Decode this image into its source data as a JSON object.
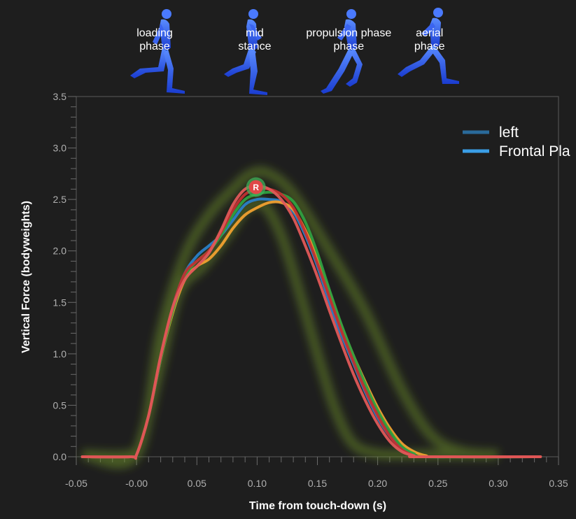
{
  "chart_data": {
    "type": "line",
    "title": "",
    "xlabel": "Time from touch-down (s)",
    "ylabel": "Vertical Force (bodyweights)",
    "xlim": [
      -0.05,
      0.35
    ],
    "ylim": [
      0,
      3.5
    ],
    "x_ticks": [
      "-0.05",
      "-0.00",
      "0.05",
      "0.10",
      "0.15",
      "0.20",
      "0.25",
      "0.30",
      "0.35"
    ],
    "y_ticks": [
      "0.0",
      "0.5",
      "1.0",
      "1.5",
      "2.0",
      "2.5",
      "3.0",
      "3.5"
    ],
    "grid": false,
    "legend_position": "top-right",
    "legend": [
      {
        "name": "left",
        "color": "#2a6a9a"
      },
      {
        "name": "Frontal Pla",
        "color": "#3a9ee6"
      }
    ],
    "phases": [
      {
        "lines": [
          "loading",
          "phase"
        ],
        "x": 0.015
      },
      {
        "lines": [
          "mid",
          "stance"
        ],
        "x": 0.098
      },
      {
        "lines": [
          "propulsion phase",
          "phase"
        ],
        "x": 0.176
      },
      {
        "lines": [
          "aerial",
          "phase"
        ],
        "x": 0.243
      }
    ],
    "marker": {
      "label": "R",
      "x": 0.099,
      "y": 2.62,
      "color": "#e04848"
    },
    "envelope": {
      "color": "#6a8a2a",
      "upper": [
        [
          -0.045,
          0.02
        ],
        [
          0.0,
          0.02
        ],
        [
          0.02,
          1.2
        ],
        [
          0.04,
          1.95
        ],
        [
          0.06,
          2.35
        ],
        [
          0.08,
          2.6
        ],
        [
          0.095,
          2.75
        ],
        [
          0.11,
          2.75
        ],
        [
          0.13,
          2.55
        ],
        [
          0.16,
          2.0
        ],
        [
          0.19,
          1.4
        ],
        [
          0.22,
          0.65
        ],
        [
          0.245,
          0.2
        ],
        [
          0.27,
          0.05
        ],
        [
          0.3,
          0.02
        ]
      ],
      "lower": [
        [
          -0.045,
          0.02
        ],
        [
          -0.005,
          0.02
        ],
        [
          0.005,
          0.2
        ],
        [
          0.02,
          0.9
        ],
        [
          0.035,
          1.6
        ],
        [
          0.055,
          1.85
        ],
        [
          0.075,
          2.15
        ],
        [
          0.09,
          2.4
        ],
        [
          0.105,
          2.45
        ],
        [
          0.12,
          2.15
        ],
        [
          0.135,
          1.6
        ],
        [
          0.15,
          1.0
        ],
        [
          0.165,
          0.45
        ],
        [
          0.18,
          0.12
        ],
        [
          0.2,
          0.03
        ],
        [
          0.22,
          0.02
        ],
        [
          0.3,
          0.02
        ]
      ]
    },
    "series": [
      {
        "color": "#2a80c8",
        "points": [
          [
            -0.045,
            0
          ],
          [
            -0.005,
            0
          ],
          [
            0.0,
            0.02
          ],
          [
            0.01,
            0.4
          ],
          [
            0.02,
            0.95
          ],
          [
            0.03,
            1.45
          ],
          [
            0.04,
            1.78
          ],
          [
            0.05,
            1.95
          ],
          [
            0.06,
            2.05
          ],
          [
            0.07,
            2.15
          ],
          [
            0.08,
            2.3
          ],
          [
            0.09,
            2.45
          ],
          [
            0.1,
            2.5
          ],
          [
            0.11,
            2.5
          ],
          [
            0.12,
            2.48
          ],
          [
            0.13,
            2.38
          ],
          [
            0.14,
            2.15
          ],
          [
            0.15,
            1.85
          ],
          [
            0.16,
            1.5
          ],
          [
            0.17,
            1.18
          ],
          [
            0.18,
            0.9
          ],
          [
            0.19,
            0.62
          ],
          [
            0.2,
            0.38
          ],
          [
            0.21,
            0.2
          ],
          [
            0.22,
            0.08
          ],
          [
            0.23,
            0.02
          ],
          [
            0.24,
            0
          ],
          [
            0.335,
            0
          ]
        ]
      },
      {
        "color": "#f0a030",
        "points": [
          [
            -0.045,
            0
          ],
          [
            -0.005,
            0
          ],
          [
            0.0,
            0.02
          ],
          [
            0.01,
            0.4
          ],
          [
            0.02,
            0.95
          ],
          [
            0.03,
            1.4
          ],
          [
            0.04,
            1.72
          ],
          [
            0.05,
            1.85
          ],
          [
            0.06,
            1.92
          ],
          [
            0.07,
            2.05
          ],
          [
            0.08,
            2.22
          ],
          [
            0.09,
            2.35
          ],
          [
            0.1,
            2.42
          ],
          [
            0.11,
            2.47
          ],
          [
            0.12,
            2.47
          ],
          [
            0.13,
            2.4
          ],
          [
            0.14,
            2.2
          ],
          [
            0.15,
            1.92
          ],
          [
            0.16,
            1.6
          ],
          [
            0.17,
            1.27
          ],
          [
            0.18,
            0.98
          ],
          [
            0.19,
            0.72
          ],
          [
            0.2,
            0.48
          ],
          [
            0.21,
            0.28
          ],
          [
            0.22,
            0.13
          ],
          [
            0.23,
            0.05
          ],
          [
            0.24,
            0.01
          ],
          [
            0.25,
            0
          ],
          [
            0.335,
            0
          ]
        ]
      },
      {
        "color": "#30a040",
        "points": [
          [
            -0.045,
            0
          ],
          [
            -0.005,
            0
          ],
          [
            0.0,
            0.02
          ],
          [
            0.01,
            0.4
          ],
          [
            0.02,
            0.95
          ],
          [
            0.03,
            1.42
          ],
          [
            0.04,
            1.75
          ],
          [
            0.05,
            1.9
          ],
          [
            0.06,
            2.0
          ],
          [
            0.07,
            2.15
          ],
          [
            0.08,
            2.35
          ],
          [
            0.09,
            2.5
          ],
          [
            0.1,
            2.55
          ],
          [
            0.11,
            2.57
          ],
          [
            0.12,
            2.55
          ],
          [
            0.13,
            2.48
          ],
          [
            0.14,
            2.28
          ],
          [
            0.15,
            1.98
          ],
          [
            0.16,
            1.62
          ],
          [
            0.17,
            1.28
          ],
          [
            0.18,
            0.98
          ],
          [
            0.19,
            0.7
          ],
          [
            0.2,
            0.45
          ],
          [
            0.21,
            0.25
          ],
          [
            0.22,
            0.1
          ],
          [
            0.23,
            0.03
          ],
          [
            0.24,
            0
          ],
          [
            0.335,
            0
          ]
        ]
      },
      {
        "color": "#c03030",
        "points": [
          [
            -0.045,
            0
          ],
          [
            -0.005,
            0
          ],
          [
            0.0,
            0.02
          ],
          [
            0.01,
            0.4
          ],
          [
            0.02,
            0.97
          ],
          [
            0.03,
            1.45
          ],
          [
            0.04,
            1.78
          ],
          [
            0.05,
            1.9
          ],
          [
            0.06,
            2.0
          ],
          [
            0.07,
            2.18
          ],
          [
            0.08,
            2.4
          ],
          [
            0.09,
            2.55
          ],
          [
            0.1,
            2.6
          ],
          [
            0.11,
            2.6
          ],
          [
            0.12,
            2.55
          ],
          [
            0.13,
            2.42
          ],
          [
            0.14,
            2.18
          ],
          [
            0.15,
            1.88
          ],
          [
            0.16,
            1.55
          ],
          [
            0.17,
            1.22
          ],
          [
            0.18,
            0.92
          ],
          [
            0.19,
            0.64
          ],
          [
            0.2,
            0.4
          ],
          [
            0.21,
            0.2
          ],
          [
            0.22,
            0.07
          ],
          [
            0.23,
            0.01
          ],
          [
            0.235,
            0
          ],
          [
            0.335,
            0
          ]
        ]
      },
      {
        "color": "#e05858",
        "points": [
          [
            -0.045,
            0
          ],
          [
            -0.005,
            0
          ],
          [
            0.0,
            0.02
          ],
          [
            0.01,
            0.4
          ],
          [
            0.02,
            0.98
          ],
          [
            0.03,
            1.45
          ],
          [
            0.04,
            1.72
          ],
          [
            0.05,
            1.85
          ],
          [
            0.06,
            1.98
          ],
          [
            0.07,
            2.2
          ],
          [
            0.08,
            2.45
          ],
          [
            0.09,
            2.6
          ],
          [
            0.1,
            2.63
          ],
          [
            0.11,
            2.6
          ],
          [
            0.12,
            2.5
          ],
          [
            0.13,
            2.32
          ],
          [
            0.14,
            2.05
          ],
          [
            0.15,
            1.75
          ],
          [
            0.16,
            1.42
          ],
          [
            0.17,
            1.1
          ],
          [
            0.18,
            0.8
          ],
          [
            0.19,
            0.54
          ],
          [
            0.2,
            0.32
          ],
          [
            0.21,
            0.15
          ],
          [
            0.22,
            0.05
          ],
          [
            0.23,
            0.01
          ],
          [
            0.235,
            0
          ],
          [
            0.335,
            0
          ]
        ]
      }
    ]
  }
}
